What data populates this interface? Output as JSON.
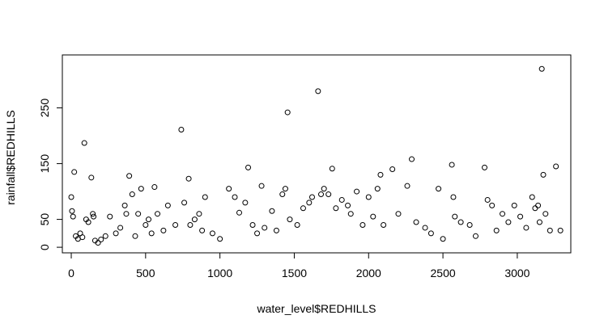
{
  "chart_data": {
    "type": "scatter",
    "xlabel": "water_level$REDHILLS",
    "ylabel": "rainfall$REDHILLS",
    "xlim": [
      -60,
      3360
    ],
    "ylim": [
      -10,
      345
    ],
    "x_ticks": [
      0,
      500,
      1000,
      1500,
      2000,
      2500,
      3000
    ],
    "y_ticks": [
      0,
      50,
      150,
      250
    ],
    "grid": false,
    "marker": "open-circle",
    "point_color": "#000000",
    "points": [
      [
        0,
        90
      ],
      [
        5,
        65
      ],
      [
        12,
        55
      ],
      [
        20,
        135
      ],
      [
        30,
        20
      ],
      [
        45,
        15
      ],
      [
        60,
        25
      ],
      [
        75,
        18
      ],
      [
        88,
        187
      ],
      [
        100,
        50
      ],
      [
        115,
        45
      ],
      [
        135,
        125
      ],
      [
        145,
        60
      ],
      [
        150,
        55
      ],
      [
        160,
        12
      ],
      [
        180,
        8
      ],
      [
        200,
        14
      ],
      [
        230,
        20
      ],
      [
        260,
        55
      ],
      [
        300,
        25
      ],
      [
        330,
        35
      ],
      [
        360,
        75
      ],
      [
        370,
        60
      ],
      [
        390,
        128
      ],
      [
        410,
        95
      ],
      [
        430,
        20
      ],
      [
        450,
        60
      ],
      [
        470,
        105
      ],
      [
        500,
        40
      ],
      [
        520,
        50
      ],
      [
        540,
        25
      ],
      [
        560,
        108
      ],
      [
        580,
        60
      ],
      [
        620,
        30
      ],
      [
        650,
        75
      ],
      [
        700,
        40
      ],
      [
        740,
        211
      ],
      [
        760,
        80
      ],
      [
        790,
        123
      ],
      [
        800,
        40
      ],
      [
        830,
        50
      ],
      [
        860,
        60
      ],
      [
        880,
        30
      ],
      [
        900,
        90
      ],
      [
        950,
        25
      ],
      [
        1000,
        15
      ],
      [
        1060,
        105
      ],
      [
        1100,
        90
      ],
      [
        1130,
        62
      ],
      [
        1170,
        80
      ],
      [
        1190,
        143
      ],
      [
        1220,
        40
      ],
      [
        1250,
        25
      ],
      [
        1280,
        110
      ],
      [
        1300,
        35
      ],
      [
        1350,
        65
      ],
      [
        1380,
        30
      ],
      [
        1420,
        95
      ],
      [
        1440,
        105
      ],
      [
        1455,
        242
      ],
      [
        1470,
        50
      ],
      [
        1520,
        40
      ],
      [
        1560,
        70
      ],
      [
        1600,
        80
      ],
      [
        1620,
        90
      ],
      [
        1660,
        280
      ],
      [
        1680,
        95
      ],
      [
        1700,
        105
      ],
      [
        1730,
        95
      ],
      [
        1755,
        141
      ],
      [
        1780,
        70
      ],
      [
        1820,
        85
      ],
      [
        1860,
        75
      ],
      [
        1880,
        60
      ],
      [
        1920,
        100
      ],
      [
        1960,
        40
      ],
      [
        2000,
        90
      ],
      [
        2030,
        55
      ],
      [
        2060,
        105
      ],
      [
        2080,
        130
      ],
      [
        2100,
        40
      ],
      [
        2160,
        140
      ],
      [
        2200,
        60
      ],
      [
        2260,
        110
      ],
      [
        2290,
        158
      ],
      [
        2320,
        45
      ],
      [
        2380,
        35
      ],
      [
        2420,
        25
      ],
      [
        2470,
        105
      ],
      [
        2500,
        15
      ],
      [
        2560,
        148
      ],
      [
        2570,
        90
      ],
      [
        2580,
        55
      ],
      [
        2620,
        45
      ],
      [
        2680,
        40
      ],
      [
        2720,
        20
      ],
      [
        2780,
        143
      ],
      [
        2800,
        85
      ],
      [
        2830,
        75
      ],
      [
        2860,
        30
      ],
      [
        2900,
        60
      ],
      [
        2940,
        45
      ],
      [
        2980,
        75
      ],
      [
        3020,
        55
      ],
      [
        3060,
        35
      ],
      [
        3100,
        90
      ],
      [
        3120,
        70
      ],
      [
        3140,
        75
      ],
      [
        3150,
        45
      ],
      [
        3165,
        320
      ],
      [
        3175,
        130
      ],
      [
        3190,
        60
      ],
      [
        3220,
        30
      ],
      [
        3260,
        145
      ],
      [
        3290,
        30
      ]
    ]
  }
}
